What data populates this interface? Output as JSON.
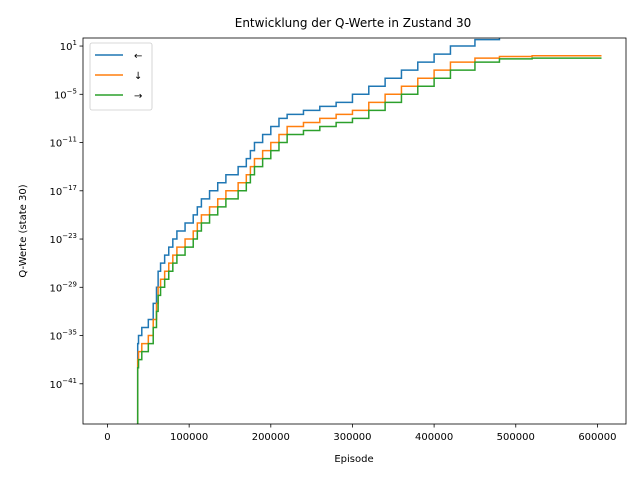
{
  "chart_data": {
    "type": "line",
    "title": "Entwicklung der Q-Werte in Zustand 30",
    "xlabel": "Episode",
    "ylabel": "Q-Werte (state 30)",
    "yscale": "log",
    "xlim": [
      -30000,
      635000
    ],
    "ylim_log10": [
      -46,
      2
    ],
    "xticks": [
      0,
      100000,
      200000,
      300000,
      400000,
      500000,
      600000
    ],
    "xtick_labels": [
      "0",
      "100000",
      "200000",
      "300000",
      "400000",
      "500000",
      "600000"
    ],
    "ytick_exponents": [
      1,
      -5,
      -11,
      -17,
      -23,
      -29,
      -35,
      -41
    ],
    "ytick_base": "10",
    "grid": false,
    "legend": {
      "placement": "upper-left",
      "entries": [
        "←",
        "↓",
        "→"
      ]
    },
    "series": [
      {
        "name": "←",
        "color": "#1f77b4",
        "x": [
          36000,
          37000,
          38000,
          42000,
          50000,
          56000,
          60000,
          62000,
          65000,
          70000,
          75000,
          80000,
          85000,
          95000,
          105000,
          110000,
          115000,
          125000,
          135000,
          145000,
          160000,
          170000,
          175000,
          180000,
          190000,
          200000,
          210000,
          220000,
          240000,
          260000,
          280000,
          300000,
          320000,
          340000,
          360000,
          380000,
          400000,
          420000,
          450000,
          480000,
          520000,
          560000,
          600000
        ],
        "log10_y": [
          -49,
          -36,
          -35,
          -34,
          -33,
          -31,
          -29,
          -27,
          -26,
          -25,
          -24,
          -23,
          -22,
          -21,
          -20,
          -19,
          -18,
          -17,
          -16,
          -15,
          -14,
          -13,
          -12,
          -11,
          -10,
          -9,
          -8,
          -7.5,
          -7,
          -6.5,
          -6,
          -5,
          -4,
          -3,
          -2,
          -1,
          0,
          1,
          1.8,
          2.3,
          2.7,
          2.9,
          3.0
        ]
      },
      {
        "name": "↓",
        "color": "#ff7f0e",
        "x": [
          36000,
          37000,
          38000,
          42000,
          50000,
          56000,
          60000,
          62000,
          65000,
          70000,
          75000,
          80000,
          85000,
          95000,
          105000,
          110000,
          115000,
          125000,
          135000,
          145000,
          160000,
          170000,
          175000,
          180000,
          190000,
          200000,
          210000,
          220000,
          240000,
          260000,
          280000,
          300000,
          320000,
          340000,
          360000,
          380000,
          400000,
          420000,
          450000,
          480000,
          520000,
          560000,
          600000
        ],
        "log10_y": [
          -49,
          -38,
          -37,
          -36,
          -35,
          -33,
          -31,
          -29,
          -28,
          -27,
          -26,
          -25,
          -24,
          -23,
          -22,
          -21,
          -20,
          -19,
          -18,
          -17,
          -16,
          -15,
          -14,
          -13,
          -12,
          -11,
          -10,
          -9,
          -8.5,
          -8,
          -7.5,
          -7,
          -6,
          -5,
          -4,
          -3,
          -2,
          -1,
          -0.5,
          -0.3,
          -0.2,
          -0.2,
          -0.2
        ]
      },
      {
        "name": "→",
        "color": "#2ca02c",
        "x": [
          36000,
          37000,
          38000,
          42000,
          50000,
          56000,
          60000,
          62000,
          65000,
          70000,
          75000,
          80000,
          85000,
          95000,
          105000,
          110000,
          115000,
          125000,
          135000,
          145000,
          160000,
          170000,
          175000,
          180000,
          190000,
          200000,
          210000,
          220000,
          240000,
          260000,
          280000,
          300000,
          320000,
          340000,
          360000,
          380000,
          400000,
          420000,
          450000,
          480000,
          520000,
          560000,
          600000
        ],
        "log10_y": [
          -49,
          -39,
          -38,
          -37,
          -36,
          -34,
          -32,
          -30,
          -29,
          -28,
          -27,
          -26,
          -25,
          -24,
          -23,
          -22,
          -21,
          -20,
          -19,
          -18,
          -17,
          -16,
          -15,
          -14,
          -13,
          -12,
          -11,
          -10,
          -9.5,
          -9,
          -8.5,
          -8,
          -7,
          -6,
          -5,
          -4,
          -3,
          -2,
          -1,
          -0.6,
          -0.5,
          -0.5,
          -0.5
        ]
      }
    ]
  }
}
